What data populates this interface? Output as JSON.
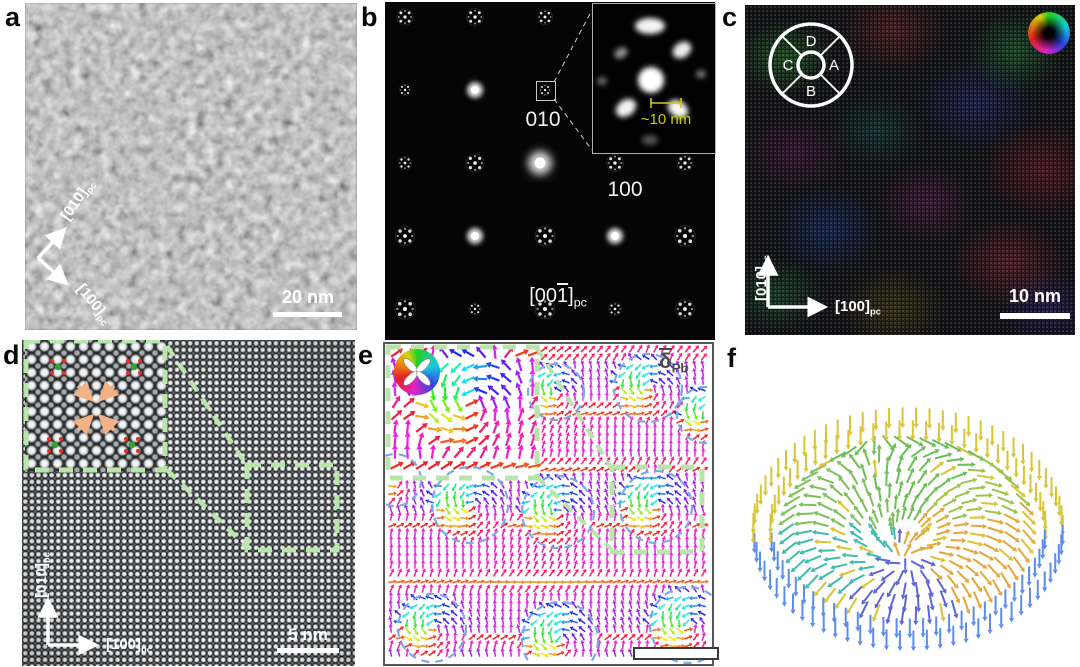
{
  "figure_labels": {
    "a": "a",
    "b": "b",
    "c": "c",
    "d": "d",
    "e": "e",
    "f": "f"
  },
  "panel_a": {
    "axis_vertical": "[010]",
    "axis_horizontal": "[100]",
    "axis_subscript": "pc",
    "scale_bar": "20 nm"
  },
  "panel_b": {
    "reflection_upper": "010",
    "reflection_right": "100",
    "zone_prefix": "[00",
    "zone_barred": "1",
    "zone_suffix": "]",
    "zone_subscript": "pc",
    "inset_scale": "~10 nm"
  },
  "panel_c": {
    "segment_top": "D",
    "segment_right": "A",
    "segment_bottom": "B",
    "segment_left": "C",
    "axis_vertical": "[010]",
    "axis_horizontal": "[100]",
    "axis_subscript": "pc",
    "scale_bar": "10 nm"
  },
  "panel_d": {
    "axis_vertical": "[010]",
    "axis_horizontal": "[100]",
    "axis_subscript": "pc",
    "scale_bar": "5 nm"
  },
  "panel_e": {
    "displacement_symbol": "δ",
    "displacement_subscript": "Pb"
  },
  "colors": {
    "annotation_green": "#b9e4ab",
    "annotation_green_edge": "#5f705c",
    "vortex_circle_blue": "#7fa8e6",
    "measure_yellow": "#c9c918",
    "arrow_orange": "#f2b285",
    "marker_red": "#e43222",
    "marker_green": "#2fa52f",
    "scalebar_white": "#ffffff"
  }
}
